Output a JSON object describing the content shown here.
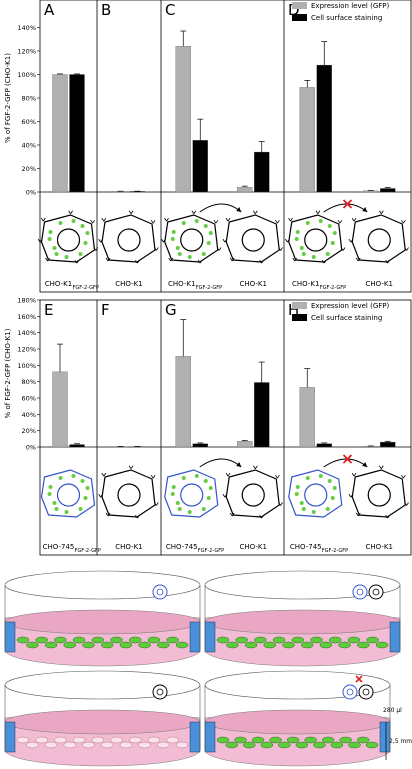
{
  "chart_data": [
    {
      "type": "bar",
      "ylabel": "% of FGF-2-GFP (CHO-K1)",
      "ylim": [
        0,
        160
      ],
      "yticks": [
        {
          "value": 0,
          "label": "0%"
        },
        {
          "value": 20,
          "label": "20%"
        },
        {
          "value": 40,
          "label": "40%"
        },
        {
          "value": 60,
          "label": "60%"
        },
        {
          "value": 80,
          "label": "80%"
        },
        {
          "value": 100,
          "label": "100%"
        },
        {
          "value": 120,
          "label": "120%"
        },
        {
          "value": 140,
          "label": "140%"
        }
      ],
      "panels": [
        {
          "letter": "A",
          "categories": [
            [
              "CHO-K1",
              "FGF-2-GFP"
            ]
          ]
        },
        {
          "letter": "B",
          "categories": [
            [
              "CHO-K1"
            ]
          ]
        },
        {
          "letter": "C",
          "categories": [
            [
              "CHO-K1",
              "FGF-2-GFP"
            ],
            [
              "CHO-K1"
            ]
          ]
        },
        {
          "letter": "D",
          "categories": [
            [
              "CHO-K1",
              "FGF-2-GFP"
            ],
            [
              "CHO-K1"
            ]
          ]
        }
      ],
      "series": [
        {
          "name": "Expression level (GFP)",
          "color": "#b0b0b0",
          "values": [
            100,
            0.5,
            124,
            4,
            89,
            1
          ],
          "errors": [
            0.5,
            0.2,
            13,
            1,
            6,
            0.3
          ]
        },
        {
          "name": "Cell surface staining",
          "color": "#000000",
          "values": [
            100,
            0.5,
            44,
            34,
            108,
            3
          ],
          "errors": [
            0.5,
            0.2,
            18,
            9,
            20,
            1
          ]
        }
      ]
    },
    {
      "type": "bar",
      "ylabel": "% of FGF-2-GFP (CHO-K1)",
      "ylim": [
        0,
        180
      ],
      "yticks": [
        {
          "value": 0,
          "label": "0%"
        },
        {
          "value": 20,
          "label": "20%"
        },
        {
          "value": 40,
          "label": "40%"
        },
        {
          "value": 60,
          "label": "60%"
        },
        {
          "value": 80,
          "label": "80%"
        },
        {
          "value": 100,
          "label": "100%"
        },
        {
          "value": 120,
          "label": "120%"
        },
        {
          "value": 140,
          "label": "140%"
        },
        {
          "value": 160,
          "label": "160%"
        },
        {
          "value": 180,
          "label": "180%"
        }
      ],
      "panels": [
        {
          "letter": "E",
          "categories": [
            [
              "CHO-745",
              "FGF-2-GFP"
            ]
          ]
        },
        {
          "letter": "F",
          "categories": [
            [
              "CHO-K1"
            ]
          ]
        },
        {
          "letter": "G",
          "categories": [
            [
              "CHO-745",
              "FGF-2-GFP"
            ],
            [
              "CHO-K1"
            ]
          ]
        },
        {
          "letter": "H",
          "categories": [
            [
              "CHO-745",
              "FGF-2-GFP"
            ],
            [
              "CHO-K1"
            ]
          ]
        }
      ],
      "series": [
        {
          "name": "Expression level (GFP)",
          "color": "#b0b0b0",
          "values": [
            92,
            0.5,
            111,
            7,
            73,
            1
          ],
          "errors": [
            34,
            0.2,
            45,
            1,
            23,
            0.3
          ]
        },
        {
          "name": "Cell surface staining",
          "color": "#000000",
          "values": [
            3,
            0.5,
            4,
            79,
            4,
            6
          ],
          "errors": [
            1,
            0.2,
            1,
            25,
            1,
            1
          ]
        }
      ]
    }
  ],
  "illustration": {
    "volume": "280 µl",
    "height": "2,5 mm"
  }
}
